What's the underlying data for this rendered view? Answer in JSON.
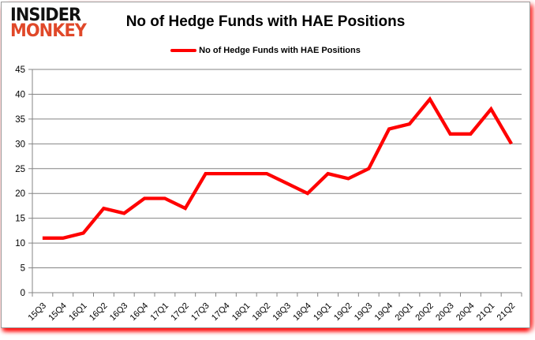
{
  "logo": {
    "line1": "INSIDER",
    "line2": "MONKEY"
  },
  "title": "No of Hedge Funds with HAE Positions",
  "legend": {
    "label": "No of Hedge Funds with HAE Positions"
  },
  "colors": {
    "line_red": "#ff0000",
    "logo_red": "#e04829",
    "grid_gray": "#848484",
    "text_black": "#000000"
  },
  "chart_data": {
    "type": "line",
    "title": "No of Hedge Funds with HAE Positions",
    "categories": [
      "15Q3",
      "15Q4",
      "16Q1",
      "16Q2",
      "16Q3",
      "16Q4",
      "17Q1",
      "17Q2",
      "17Q3",
      "17Q4",
      "18Q1",
      "18Q2",
      "18Q3",
      "18Q4",
      "19Q1",
      "19Q2",
      "19Q3",
      "19Q4",
      "20Q1",
      "20Q2",
      "20Q3",
      "20Q4",
      "21Q1",
      "21Q2"
    ],
    "series": [
      {
        "name": "No of Hedge Funds with HAE Positions",
        "color": "#ff0000",
        "values": [
          11,
          11,
          12,
          17,
          16,
          19,
          19,
          17,
          24,
          24,
          24,
          24,
          22,
          20,
          24,
          23,
          25,
          33,
          34,
          39,
          32,
          32,
          37,
          30
        ]
      }
    ],
    "xlabel": "",
    "ylabel": "",
    "ylim": [
      0,
      45
    ],
    "ytick_step": 5,
    "grid": "horizontal",
    "gridline_color": "#848484",
    "legend_position": "top"
  }
}
